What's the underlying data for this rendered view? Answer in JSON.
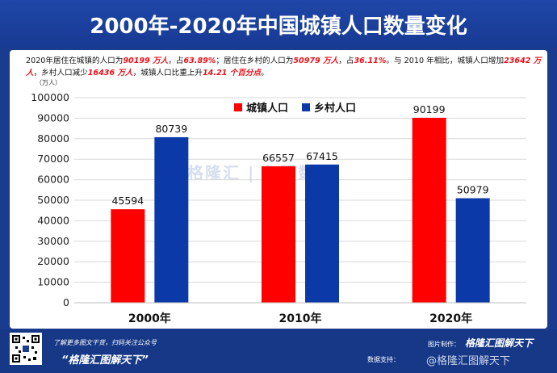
{
  "header": {
    "title": "2000年-2020年中国城镇人口数量变化"
  },
  "description": {
    "p1": "2020年居住在城镇的人口为",
    "v1": "90199 万人",
    "p2": "，占",
    "v2": "63.89%",
    "p3": "；居住在乡村的人口为",
    "v3": "50979 万人",
    "p4": "，占",
    "v4": "36.11%",
    "p5": "。与 2010 年相比，城镇人口增加",
    "v5": "23642 万人",
    "p6": "，乡村人口减少",
    "v6": "16436 万人",
    "p7": "，城镇人口比重上升",
    "v7": "14.21 个百分点",
    "p8": "。"
  },
  "unit_label": "（万人）",
  "watermark": "格隆汇 | 句图数据",
  "chart_data": {
    "type": "bar",
    "categories": [
      "2000年",
      "2010年",
      "2020年"
    ],
    "series": [
      {
        "name": "城镇人口",
        "values": [
          45594,
          66557,
          90199
        ],
        "color": "#ff0000"
      },
      {
        "name": "乡村人口",
        "values": [
          80739,
          67415,
          50979
        ],
        "color": "#0b3aa8"
      }
    ],
    "ylim": [
      0,
      100000
    ],
    "yticks": [
      0,
      10000,
      20000,
      30000,
      40000,
      50000,
      60000,
      70000,
      80000,
      90000,
      100000
    ],
    "grid": true,
    "legend": "top-center"
  },
  "footer": {
    "left_line1": "了解更多图文干货，扫码关注公众号",
    "left_line2": "“格隆汇图解天下”",
    "right_label": "图片制作：",
    "right_brand": "格隆汇图解天下",
    "data_support": "数据支持：",
    "weibo": "@格隆汇图解天下"
  }
}
